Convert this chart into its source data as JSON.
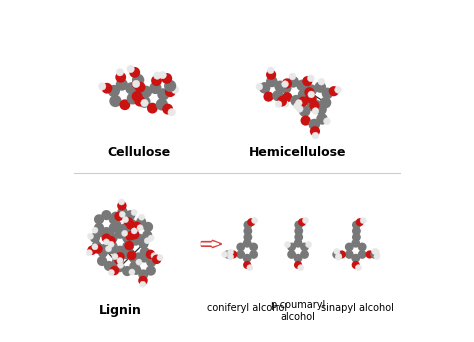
{
  "bg_color": "#ffffff",
  "title_cellulose": "Cellulose",
  "title_hemicellulose": "Hemicellulose",
  "title_lignin": "Lignin",
  "label_coniferyl": "coniferyl alcohol",
  "label_pcoumaryl": "p-coumaryl\nalcohol",
  "label_sinapyl": "sinapyl alcohol",
  "title_fontsize": 9,
  "label_fontsize": 7,
  "arrow_color": "#d94040",
  "atom_C": "#787878",
  "atom_O": "#cc1111",
  "atom_H": "#e8e8e8",
  "bond_color": "#333333",
  "divider_color": "#cccccc",
  "fig_w": 4.74,
  "fig_h": 3.42,
  "dpi": 100
}
